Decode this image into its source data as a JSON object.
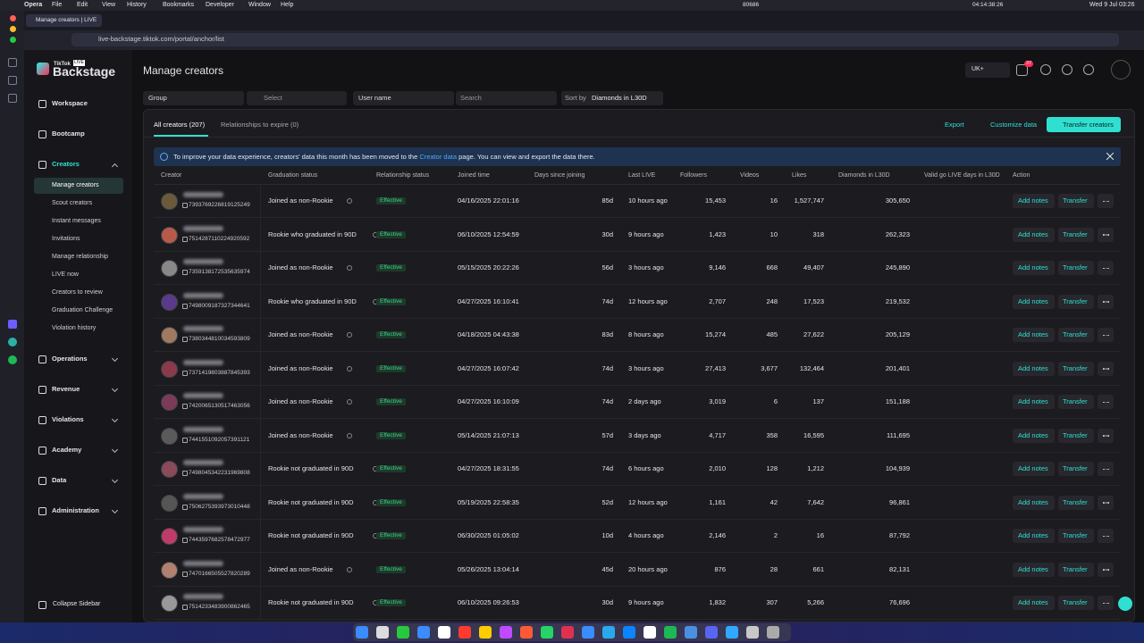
{
  "menubar": {
    "app": "Opera",
    "menus": [
      "File",
      "Edit",
      "View",
      "History",
      "Bookmarks",
      "Developer",
      "Window",
      "Help"
    ],
    "status": [
      "80686",
      "04:14:38:26",
      "Wed 9 Jul 03:26"
    ]
  },
  "browser": {
    "tab": "Manage creators | LIVE",
    "url": "live-backstage.tiktok.com/portal/anchor/list"
  },
  "sidebar": {
    "brand_small": "TikTok",
    "brand_badge": "LIVE",
    "brand": "Backstage",
    "top": [
      "Workspace",
      "Bootcamp",
      "Creators"
    ],
    "creators_sub": [
      "Manage creators",
      "Scout creators",
      "Instant messages",
      "Invitations",
      "Manage relationship",
      "LIVE now",
      "Creators to review",
      "Graduation Challenge",
      "Violation history"
    ],
    "bottom": [
      "Operations",
      "Revenue",
      "Violations",
      "Academy",
      "Data",
      "Administration"
    ],
    "collapse": "Collapse Sidebar"
  },
  "header": {
    "title": "Manage creators",
    "region": "UK+",
    "badge": "37"
  },
  "filters": {
    "group": "Group",
    "select": "Select",
    "user": "User name",
    "search": "Search",
    "sort_label": "Sort by",
    "sort_value": "Diamonds in L30D"
  },
  "tabs": [
    "All creators (207)",
    "Relationships to expire (0)"
  ],
  "buttons": [
    "Export",
    "Customize data",
    "Transfer creators"
  ],
  "banner": {
    "before": "To improve your data experience, creators' data this month has been moved to the ",
    "link": "Creator data",
    "after": " page. You can view and export the data there."
  },
  "table": {
    "columns": [
      "Creator",
      "Graduation status",
      "Relationship status",
      "Joined time",
      "Days since joining",
      "Last LIVE",
      "Followers",
      "Videos",
      "Likes",
      "Diamonds in L30D",
      "Valid go LIVE days in L30D",
      "Action"
    ],
    "actions": [
      "Add notes",
      "Transfer"
    ],
    "rows": [
      [
        "7393769226819125249",
        "Joined as non-Rookie",
        "Effective",
        "04/16/2025 22:01:16",
        "85d",
        "10 hours ago",
        "15,453",
        "16",
        "1,527,747",
        "305,650"
      ],
      [
        "7514287110224920592",
        "Rookie who graduated in 90D",
        "Effective",
        "06/10/2025 12:54:59",
        "30d",
        "9 hours ago",
        "1,423",
        "10",
        "318",
        "262,323"
      ],
      [
        "7359138172535635974",
        "Joined as non-Rookie",
        "Effective",
        "05/15/2025 20:22:26",
        "56d",
        "3 hours ago",
        "9,146",
        "668",
        "49,407",
        "245,890"
      ],
      [
        "7498009187327344641",
        "Rookie who graduated in 90D",
        "Effective",
        "04/27/2025 16:10:41",
        "74d",
        "12 hours ago",
        "2,707",
        "248",
        "17,523",
        "219,532"
      ],
      [
        "7380344810034593809",
        "Joined as non-Rookie",
        "Effective",
        "04/18/2025 04:43:38",
        "83d",
        "8 hours ago",
        "15,274",
        "485",
        "27,622",
        "205,129"
      ],
      [
        "7371419803887845393",
        "Joined as non-Rookie",
        "Effective",
        "04/27/2025 16:07:42",
        "74d",
        "3 hours ago",
        "27,413",
        "3,677",
        "132,464",
        "201,401"
      ],
      [
        "7420065130517463056",
        "Joined as non-Rookie",
        "Effective",
        "04/27/2025 16:10:09",
        "74d",
        "2 days ago",
        "3,019",
        "6",
        "137",
        "151,188"
      ],
      [
        "7441551092057391121",
        "Joined as non-Rookie",
        "Effective",
        "05/14/2025 21:07:13",
        "57d",
        "3 days ago",
        "4,717",
        "358",
        "16,595",
        "111,695"
      ],
      [
        "7498045342231969808",
        "Rookie not graduated in 90D",
        "Effective",
        "04/27/2025 18:31:55",
        "74d",
        "6 hours ago",
        "2,010",
        "128",
        "1,212",
        "104,939"
      ],
      [
        "7506275393973010448",
        "Rookie not graduated in 90D",
        "Effective",
        "05/19/2025 22:58:35",
        "52d",
        "12 hours ago",
        "1,161",
        "42",
        "7,642",
        "96,861"
      ],
      [
        "7443597682578472977",
        "Rookie not graduated in 90D",
        "Effective",
        "06/30/2025 01:05:02",
        "10d",
        "4 hours ago",
        "2,146",
        "2",
        "16",
        "87,792"
      ],
      [
        "7470166505527820289",
        "Joined as non-Rookie",
        "Effective",
        "05/26/2025 13:04:14",
        "45d",
        "20 hours ago",
        "876",
        "28",
        "661",
        "82,131"
      ],
      [
        "7514233483900862465",
        "Rookie not graduated in 90D",
        "Effective",
        "06/10/2025 09:26:53",
        "30d",
        "9 hours ago",
        "1,832",
        "307",
        "5,266",
        "76,696"
      ]
    ]
  }
}
